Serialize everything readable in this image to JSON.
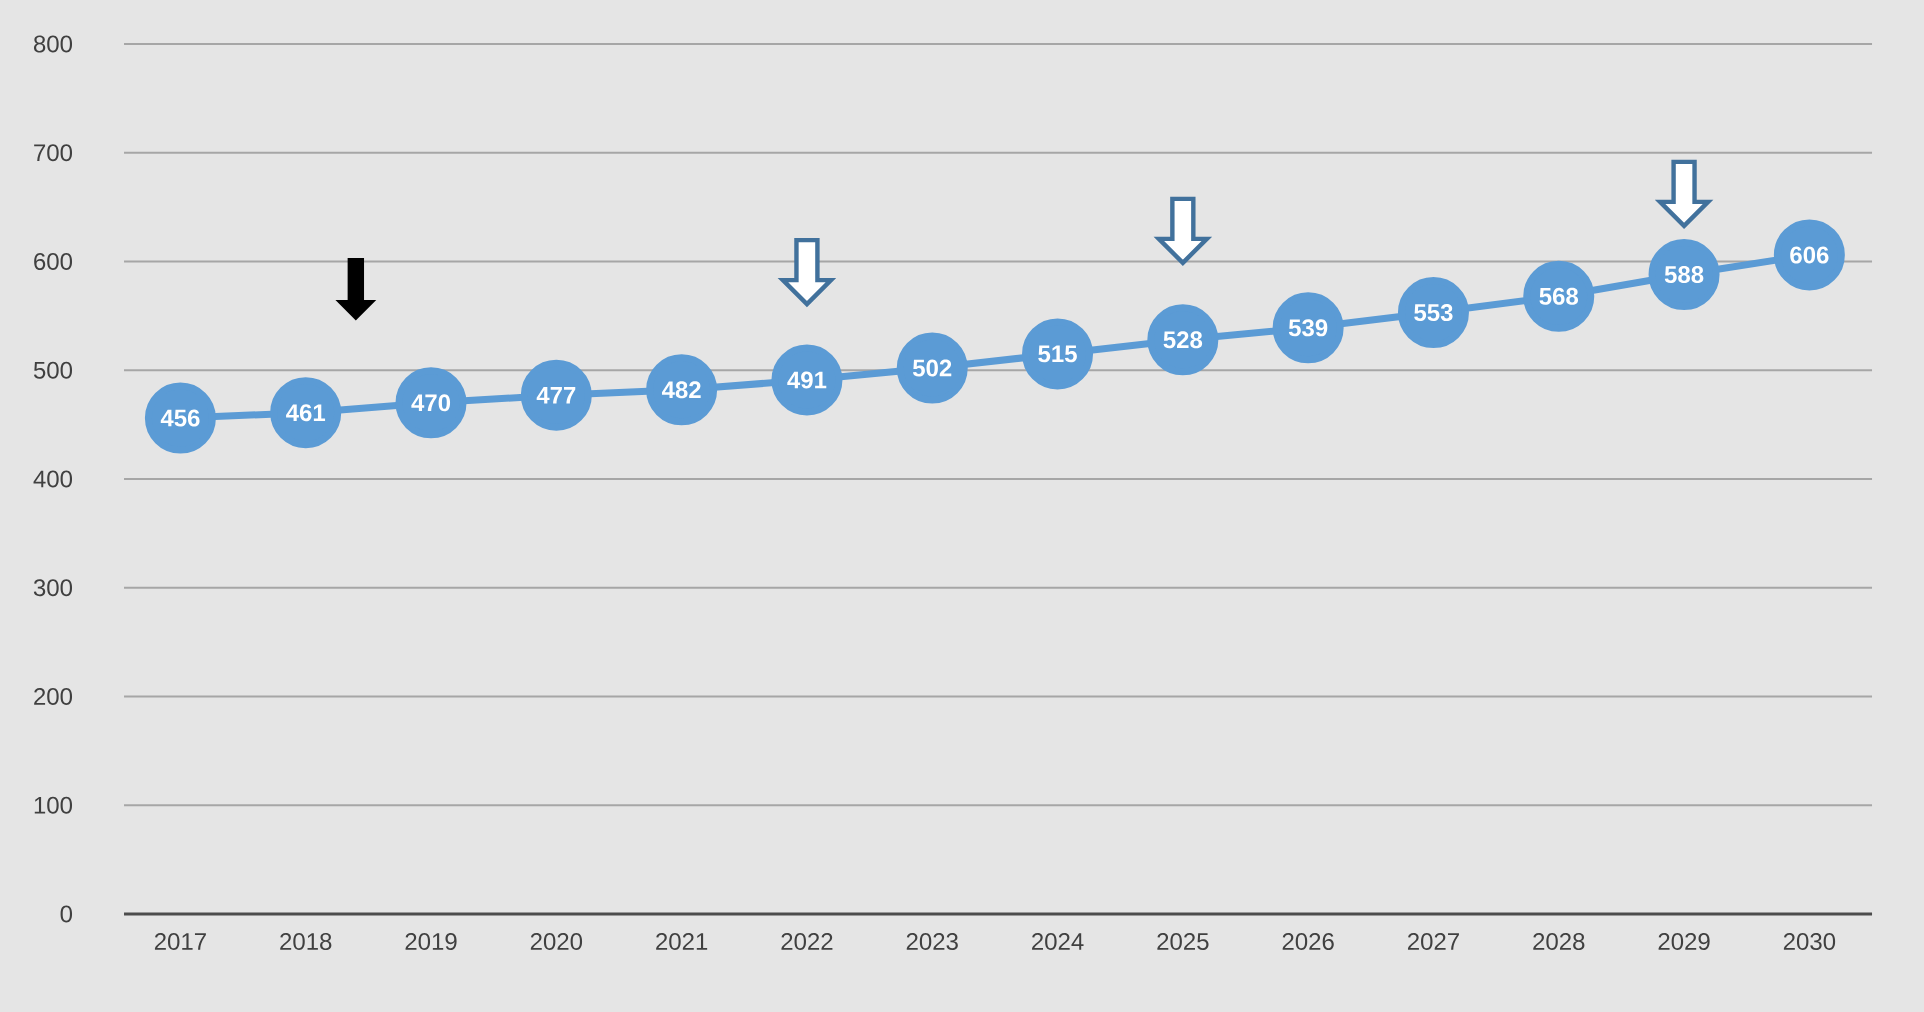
{
  "chart_data": {
    "type": "line",
    "categories": [
      "2017",
      "2018",
      "2019",
      "2020",
      "2021",
      "2022",
      "2023",
      "2024",
      "2025",
      "2026",
      "2027",
      "2028",
      "2029",
      "2030"
    ],
    "values": [
      456,
      461,
      470,
      477,
      482,
      491,
      502,
      515,
      528,
      539,
      553,
      568,
      588,
      606
    ],
    "color": "#5b9bd5",
    "ylim": [
      0,
      800
    ],
    "yticks": [
      0,
      100,
      200,
      300,
      400,
      500,
      600,
      700,
      800
    ],
    "grid": "y",
    "marker": "circle",
    "data_labels": true
  }
}
